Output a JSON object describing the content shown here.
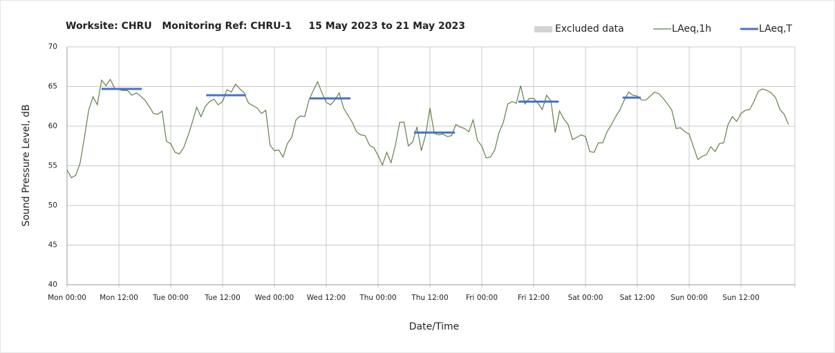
{
  "chart_data": {
    "type": "line",
    "title": "Worksite: CHRU   Monitoring Ref: CHRU-1     15 May 2023 to 21 May 2023",
    "xlabel": "Date/Time",
    "ylabel": "Sound Pressure Level, dB",
    "xlim": [
      0,
      168
    ],
    "ylim": [
      40,
      70
    ],
    "yticks": [
      40,
      45,
      50,
      55,
      60,
      65,
      70
    ],
    "xticks": [
      {
        "value": 0,
        "label": "Mon 00:00"
      },
      {
        "value": 12,
        "label": "Mon 12:00"
      },
      {
        "value": 24,
        "label": "Tue 00:00"
      },
      {
        "value": 36,
        "label": "Tue 12:00"
      },
      {
        "value": 48,
        "label": "Wed 00:00"
      },
      {
        "value": 60,
        "label": "Wed 12:00"
      },
      {
        "value": 72,
        "label": "Thu 00:00"
      },
      {
        "value": 84,
        "label": "Thu 12:00"
      },
      {
        "value": 96,
        "label": "Fri 00:00"
      },
      {
        "value": 108,
        "label": "Fri 12:00"
      },
      {
        "value": 120,
        "label": "Sat 00:00"
      },
      {
        "value": 132,
        "label": "Sat 12:00"
      },
      {
        "value": 144,
        "label": "Sun 00:00"
      },
      {
        "value": 156,
        "label": "Sun 12:00"
      }
    ],
    "grid": true,
    "legend": "top-right",
    "excluded": {
      "name": "Excluded data",
      "color": "#d3d3d3"
    },
    "x": [
      0,
      1,
      2,
      3,
      4,
      5,
      6,
      7,
      8,
      9,
      10,
      11,
      12,
      13,
      14,
      15,
      16,
      17,
      18,
      19,
      20,
      21,
      22,
      23,
      24,
      25,
      26,
      27,
      28,
      29,
      30,
      31,
      32,
      33,
      34,
      35,
      36,
      37,
      38,
      39,
      40,
      41,
      42,
      43,
      44,
      45,
      46,
      47,
      48,
      49,
      50,
      51,
      52,
      53,
      54,
      55,
      56,
      57,
      58,
      59,
      60,
      61,
      62,
      63,
      64,
      65,
      66,
      67,
      68,
      69,
      70,
      71,
      72,
      73,
      74,
      75,
      76,
      77,
      78,
      79,
      80,
      81,
      82,
      83,
      84,
      85,
      86,
      87,
      88,
      89,
      90,
      91,
      92,
      93,
      94,
      95,
      96,
      97,
      98,
      99,
      100,
      101,
      102,
      103,
      104,
      105,
      106,
      107,
      108,
      109,
      110,
      111,
      112,
      113,
      114,
      115,
      116,
      117,
      118,
      119,
      120,
      121,
      122,
      123,
      124,
      125,
      126,
      127,
      128,
      129,
      130,
      131,
      132,
      133,
      134,
      135,
      136,
      137,
      138,
      139,
      140,
      141,
      142,
      143,
      144,
      145,
      146,
      147,
      148,
      149,
      150,
      151,
      152,
      153,
      154,
      155,
      156,
      157,
      158,
      159,
      160,
      161,
      162,
      163,
      164,
      165,
      166,
      167
    ],
    "series": [
      {
        "name": "LAeq,1h",
        "color": "#5f7f45",
        "values": [
          54.5,
          53.5,
          53.8,
          55.3,
          58.5,
          62,
          63.7,
          62.7,
          65.8,
          65.1,
          65.9,
          64.8,
          64.6,
          64.5,
          64.5,
          63.9,
          64.2,
          63.8,
          63.3,
          62.5,
          61.6,
          61.5,
          61.9,
          58.1,
          57.8,
          56.7,
          56.5,
          57.3,
          58.8,
          60.5,
          62.4,
          61.2,
          62.5,
          63.1,
          63.4,
          62.7,
          63.1,
          64.6,
          64.3,
          65.3,
          64.7,
          64.2,
          62.9,
          62.6,
          62.3,
          61.6,
          62,
          57.6,
          56.9,
          57,
          56.1,
          57.8,
          58.6,
          60.8,
          61.3,
          61.2,
          63.3,
          64.5,
          65.6,
          64.2,
          63,
          62.7,
          63.3,
          64.2,
          62.3,
          61.4,
          60.5,
          59.3,
          58.9,
          58.8,
          57.6,
          57.3,
          56.3,
          55.1,
          56.7,
          55.4,
          57.6,
          60.5,
          60.5,
          57.5,
          58,
          59.9,
          56.9,
          58.9,
          62.3,
          59.1,
          58.9,
          59,
          58.7,
          58.8,
          60.2,
          59.9,
          59.7,
          59.3,
          60.8,
          58.2,
          57.5,
          56,
          56.1,
          57,
          59.2,
          60.5,
          62.8,
          63.1,
          62.9,
          65.1,
          62.8,
          63.5,
          63.5,
          62.9,
          62.1,
          63.9,
          63.2,
          59.2,
          61.9,
          60.9,
          60.2,
          58.3,
          58.6,
          58.9,
          58.7,
          56.8,
          56.7,
          57.9,
          57.9,
          59.3,
          60.2,
          61.2,
          62.1,
          63.3,
          64.3,
          63.9,
          63.8,
          63.3,
          63.3,
          63.8,
          64.3,
          64.1,
          63.5,
          62.8,
          62,
          59.7,
          59.8,
          59.3,
          59,
          57.4,
          55.8,
          56.2,
          56.4,
          57.4,
          56.8,
          57.8,
          57.9,
          60.2,
          61.2,
          60.6,
          61.6,
          62,
          62.1,
          63.1,
          64.4,
          64.7,
          64.5,
          64.2,
          63.6,
          62.1,
          61.5,
          60.2
        ]
      },
      {
        "name": "LAeq,T",
        "color": "#4472c4",
        "periods": [
          {
            "start": 8,
            "end": 17.3,
            "value": 64.7
          },
          {
            "start": 32.2,
            "end": 41.4,
            "value": 63.9
          },
          {
            "start": 56.2,
            "end": 65.6,
            "value": 63.5
          },
          {
            "start": 80.3,
            "end": 89.8,
            "value": 59.2
          },
          {
            "start": 104.5,
            "end": 113.8,
            "value": 63.1
          },
          {
            "start": 128.6,
            "end": 132.8,
            "value": 63.6
          }
        ]
      }
    ]
  }
}
